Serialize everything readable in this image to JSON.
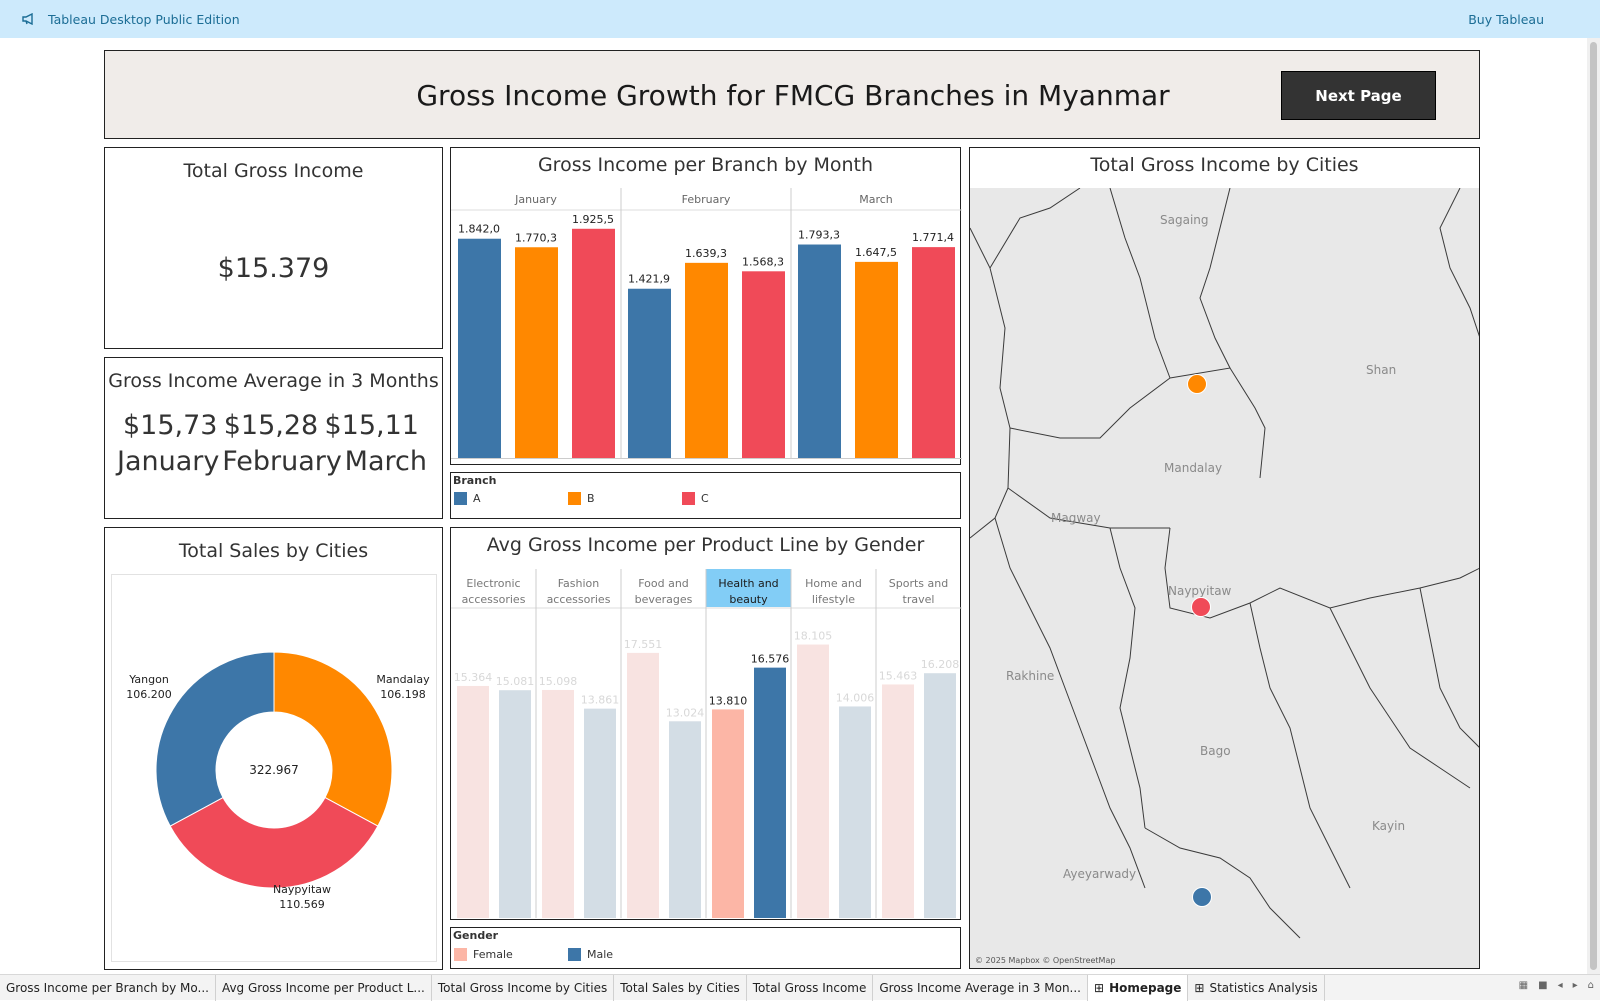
{
  "app": {
    "title": "Tableau Desktop Public Edition",
    "buy": "Buy Tableau"
  },
  "header": {
    "title": "Gross Income Growth for FMCG Branches in Myanmar",
    "next_button": "Next Page"
  },
  "total_income": {
    "title": "Total Gross Income",
    "value": "$15.379"
  },
  "average": {
    "title": "Gross Income Average in 3 Months",
    "values": [
      "$15,73",
      "$15,28",
      "$15,11"
    ],
    "months": [
      "January",
      "February",
      "March"
    ]
  },
  "branch_chart": {
    "title": "Gross Income per Branch by Month",
    "legend_title": "Branch",
    "legend": [
      "A",
      "B",
      "C"
    ]
  },
  "donut": {
    "title": "Total Sales by Cities",
    "center": "322.967",
    "labels": [
      {
        "name": "Yangon",
        "value": "106.200"
      },
      {
        "name": "Mandalay",
        "value": "106.198"
      },
      {
        "name": "Naypyitaw",
        "value": "110.569"
      }
    ]
  },
  "gender_chart": {
    "title": "Avg Gross Income per Product Line by Gender",
    "legend_title": "Gender",
    "legend": [
      "Female",
      "Male"
    ]
  },
  "map": {
    "title": "Total Gross Income by Cities",
    "labels": [
      "Sagaing",
      "Shan",
      "Mandalay",
      "Magway",
      "Naypyitaw",
      "Rakhine",
      "Bago",
      "Kayin",
      "Ayeyarwady"
    ],
    "attribution": "© 2025 Mapbox © OpenStreetMap"
  },
  "tabs": [
    "Gross Income per Branch by Mo...",
    "Avg Gross Income per Product L...",
    "Total Gross Income by Cities",
    "Total Sales by Cities",
    "Total Gross Income",
    "Gross Income Average in 3 Mon...",
    "Homepage",
    "Statistics Analysis"
  ],
  "colors": {
    "branch_a": "#3d76a8",
    "branch_b": "#ff8800",
    "branch_c": "#f04a58",
    "female": "#fcb6a6",
    "male": "#3d76a8",
    "female_dim": "#f8e3e1",
    "male_dim": "#d3dde5",
    "highlight": "#82cdf6"
  },
  "chart_data": [
    {
      "type": "bar",
      "title": "Gross Income per Branch by Month",
      "categories": [
        "January",
        "February",
        "March"
      ],
      "series": [
        {
          "name": "A",
          "values": [
            1842.0,
            1421.9,
            1793.3
          ]
        },
        {
          "name": "B",
          "values": [
            1770.3,
            1639.3,
            1647.5
          ]
        },
        {
          "name": "C",
          "values": [
            1925.5,
            1568.3,
            1771.4
          ]
        }
      ],
      "data_labels": [
        [
          "1.842,0",
          "1.770,3",
          "1.925,5"
        ],
        [
          "1.421,9",
          "1.639,3",
          "1.568,3"
        ],
        [
          "1.793,3",
          "1.647,5",
          "1.771,4"
        ]
      ],
      "ylim": [
        0,
        2100
      ],
      "legend": "bottom"
    },
    {
      "type": "bar",
      "title": "Avg Gross Income per Product Line by Gender",
      "categories": [
        "Electronic accessories",
        "Fashion accessories",
        "Food and beverages",
        "Health and beauty",
        "Home and lifestyle",
        "Sports and travel"
      ],
      "category_lines": [
        [
          "Electronic",
          "accessories"
        ],
        [
          "Fashion",
          "accessories"
        ],
        [
          "Food and",
          "beverages"
        ],
        [
          "Health and",
          "beauty"
        ],
        [
          "Home and",
          "lifestyle"
        ],
        [
          "Sports and",
          "travel"
        ]
      ],
      "series": [
        {
          "name": "Female",
          "values": [
            15.364,
            15.098,
            17.551,
            13.81,
            18.105,
            15.463
          ]
        },
        {
          "name": "Male",
          "values": [
            15.081,
            13.861,
            13.024,
            16.576,
            14.006,
            16.208
          ]
        }
      ],
      "highlighted": "Health and beauty",
      "ylim": [
        0,
        19.2
      ],
      "legend": "bottom"
    },
    {
      "type": "pie",
      "title": "Total Sales by Cities",
      "labels": [
        "Mandalay",
        "Naypyitaw",
        "Yangon"
      ],
      "values": [
        106198,
        110569,
        106200
      ],
      "colors": [
        "#ff8800",
        "#f04a58",
        "#3d76a8"
      ],
      "total": 322967
    }
  ]
}
